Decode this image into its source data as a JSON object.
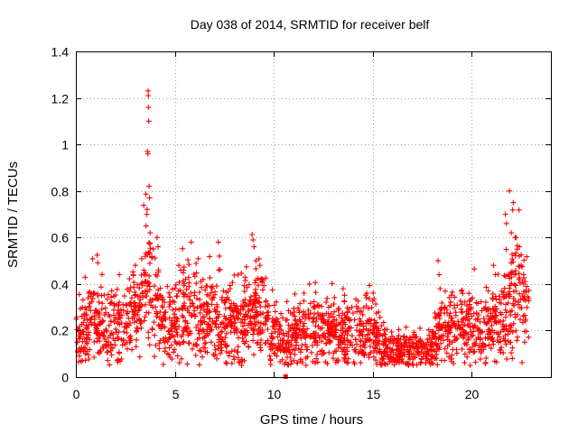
{
  "chart_data": {
    "type": "scatter",
    "title": "Day 038 of 2014, SRMTID for receiver belf",
    "xlabel": "GPS time / hours",
    "ylabel": "SRMTID / TECUs",
    "xlim": [
      0,
      24
    ],
    "ylim": [
      0,
      1.4
    ],
    "xticks": [
      0,
      5,
      10,
      15,
      20
    ],
    "xtick_labels": [
      "0",
      "5",
      "10",
      "15",
      "20"
    ],
    "yticks": [
      0,
      0.2,
      0.4,
      0.6,
      0.8,
      1.0,
      1.2,
      1.4
    ],
    "ytick_labels": [
      "0",
      "0.2",
      "0.4",
      "0.6",
      "0.8",
      "1",
      "1.2",
      "1.4"
    ],
    "grid": true,
    "marker": "+",
    "series_color": "#ff0000",
    "baseline": [
      [
        0.0,
        0.16
      ],
      [
        0.5,
        0.2
      ],
      [
        1.0,
        0.24
      ],
      [
        1.5,
        0.2
      ],
      [
        2.0,
        0.22
      ],
      [
        2.5,
        0.24
      ],
      [
        3.0,
        0.26
      ],
      [
        3.4,
        0.34
      ],
      [
        3.6,
        0.45
      ],
      [
        3.9,
        0.36
      ],
      [
        4.2,
        0.28
      ],
      [
        4.6,
        0.22
      ],
      [
        5.0,
        0.24
      ],
      [
        5.5,
        0.3
      ],
      [
        6.0,
        0.26
      ],
      [
        6.5,
        0.24
      ],
      [
        7.0,
        0.26
      ],
      [
        7.5,
        0.24
      ],
      [
        8.0,
        0.22
      ],
      [
        8.5,
        0.24
      ],
      [
        9.0,
        0.3
      ],
      [
        9.5,
        0.26
      ],
      [
        10.0,
        0.2
      ],
      [
        10.5,
        0.16
      ],
      [
        11.0,
        0.17
      ],
      [
        11.5,
        0.18
      ],
      [
        12.0,
        0.22
      ],
      [
        12.5,
        0.18
      ],
      [
        13.0,
        0.2
      ],
      [
        13.5,
        0.18
      ],
      [
        14.0,
        0.19
      ],
      [
        14.5,
        0.18
      ],
      [
        15.0,
        0.19
      ],
      [
        15.5,
        0.13
      ],
      [
        16.0,
        0.12
      ],
      [
        16.5,
        0.11
      ],
      [
        17.0,
        0.12
      ],
      [
        17.5,
        0.11
      ],
      [
        18.0,
        0.12
      ],
      [
        18.5,
        0.22
      ],
      [
        19.0,
        0.2
      ],
      [
        19.5,
        0.22
      ],
      [
        20.0,
        0.24
      ],
      [
        20.5,
        0.2
      ],
      [
        21.0,
        0.22
      ],
      [
        21.5,
        0.24
      ],
      [
        22.0,
        0.34
      ],
      [
        22.4,
        0.36
      ],
      [
        22.8,
        0.28
      ]
    ],
    "peaks": [
      {
        "x": 3.65,
        "y": 1.23
      },
      {
        "x": 3.66,
        "y": 1.21
      },
      {
        "x": 3.67,
        "y": 1.16
      },
      {
        "x": 3.68,
        "y": 1.1
      },
      {
        "x": 3.62,
        "y": 0.97
      },
      {
        "x": 3.64,
        "y": 0.96
      },
      {
        "x": 3.7,
        "y": 0.82
      },
      {
        "x": 3.72,
        "y": 0.77
      },
      {
        "x": 3.58,
        "y": 0.7
      },
      {
        "x": 3.55,
        "y": 0.65
      },
      {
        "x": 3.75,
        "y": 0.62
      },
      {
        "x": 4.1,
        "y": 0.6
      },
      {
        "x": 4.15,
        "y": 0.56
      },
      {
        "x": 7.2,
        "y": 0.58
      },
      {
        "x": 7.25,
        "y": 0.52
      },
      {
        "x": 7.22,
        "y": 0.46
      },
      {
        "x": 8.95,
        "y": 0.59
      },
      {
        "x": 9.0,
        "y": 0.56
      },
      {
        "x": 9.1,
        "y": 0.5
      },
      {
        "x": 9.3,
        "y": 0.48
      },
      {
        "x": 9.35,
        "y": 0.42
      },
      {
        "x": 5.2,
        "y": 0.48
      },
      {
        "x": 5.3,
        "y": 0.46
      },
      {
        "x": 3.0,
        "y": 0.48
      },
      {
        "x": 2.9,
        "y": 0.44
      },
      {
        "x": 11.8,
        "y": 0.4
      },
      {
        "x": 13.5,
        "y": 0.38
      },
      {
        "x": 14.7,
        "y": 0.36
      },
      {
        "x": 18.3,
        "y": 0.5
      },
      {
        "x": 18.35,
        "y": 0.44
      },
      {
        "x": 18.4,
        "y": 0.38
      },
      {
        "x": 21.9,
        "y": 0.8
      },
      {
        "x": 22.1,
        "y": 0.75
      },
      {
        "x": 21.7,
        "y": 0.7
      },
      {
        "x": 21.75,
        "y": 0.66
      },
      {
        "x": 22.0,
        "y": 0.62
      },
      {
        "x": 22.2,
        "y": 0.6
      },
      {
        "x": 22.3,
        "y": 0.55
      },
      {
        "x": 22.4,
        "y": 0.52
      },
      {
        "x": 21.1,
        "y": 0.48
      },
      {
        "x": 21.2,
        "y": 0.44
      },
      {
        "x": 22.5,
        "y": 0.48
      }
    ],
    "outlier_marker": {
      "x": 10.6,
      "y": 0.0
    }
  }
}
